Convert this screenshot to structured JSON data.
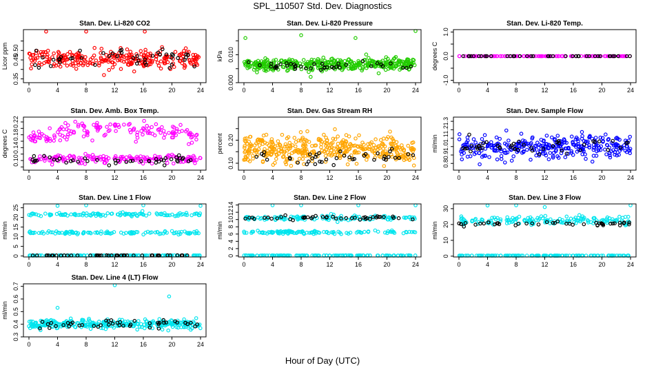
{
  "page": {
    "title": "SPL_110507  Std. Dev. Diagnostics",
    "xlabel": "Hour of Day (UTC)"
  },
  "colors": {
    "red": "#ff0000",
    "green": "#22cc00",
    "magenta": "#ff00ff",
    "orange": "#ffa500",
    "blue": "#0000ff",
    "cyan": "#00e5ee",
    "black": "#000000"
  },
  "chart_data": [
    {
      "type": "scatter",
      "title": "Stan. Dev. Li-820 CO2",
      "ylabel": "Licor ppm",
      "xlim": [
        0,
        24
      ],
      "xticks": [
        0,
        4,
        8,
        12,
        16,
        20,
        24
      ],
      "ylim": [
        0.33,
        0.61
      ],
      "yticks": [
        0.35,
        0.4,
        0.45,
        0.5,
        0.55
      ],
      "yticklabels": [
        "0.35",
        "",
        "0.45",
        "0.50",
        ""
      ],
      "series": [
        {
          "color": "red",
          "bands": [
            {
              "center": 0.455,
              "spread": 0.05
            }
          ],
          "count": 280,
          "outliers": [
            [
              2.4,
              0.6
            ],
            [
              8,
              0.6
            ],
            [
              16.2,
              0.6
            ]
          ]
        },
        {
          "color": "black",
          "bands": [
            {
              "center": 0.46,
              "spread": 0.04
            }
          ],
          "count": 45
        }
      ]
    },
    {
      "type": "scatter",
      "title": "Stan. Dev. Li-820 Pressure",
      "ylabel": "kPa",
      "xlim": [
        0,
        24
      ],
      "xticks": [
        0,
        4,
        8,
        12,
        16,
        20,
        24
      ],
      "ylim": [
        0.0,
        0.019
      ],
      "yticks": [
        0.0,
        0.005,
        0.01,
        0.015
      ],
      "yticklabels": [
        "0.000",
        "",
        "0.010",
        ""
      ],
      "series": [
        {
          "color": "green",
          "bands": [
            {
              "center": 0.0065,
              "spread": 0.0022
            }
          ],
          "count": 400,
          "outliers": [
            [
              8,
              0.017
            ],
            [
              15.6,
              0.016
            ],
            [
              24,
              0.019
            ],
            [
              0.2,
              0.016
            ]
          ]
        },
        {
          "color": "black",
          "bands": [
            {
              "center": 0.006,
              "spread": 0.0015
            }
          ],
          "count": 40
        }
      ]
    },
    {
      "type": "scatter",
      "title": "Stan. Dev. Li-820 Temp.",
      "ylabel": "degrees C",
      "xlim": [
        0,
        24
      ],
      "xticks": [
        0,
        4,
        8,
        12,
        16,
        20,
        24
      ],
      "ylim": [
        -1.1,
        1.1
      ],
      "yticks": [
        -1.0,
        -0.5,
        0.0,
        0.5,
        1.0
      ],
      "yticklabels": [
        "-1.0",
        "",
        "0.0",
        "",
        "1.0"
      ],
      "series": [
        {
          "color": "magenta",
          "bands": [
            {
              "center": 0.0,
              "spread": 0.0
            }
          ],
          "count": 120
        },
        {
          "color": "black",
          "bands": [
            {
              "center": 0.0,
              "spread": 0.0
            }
          ],
          "count": 40
        }
      ]
    },
    {
      "type": "scatter",
      "title": "Stan. Dev. Amb. Box Temp.",
      "ylabel": "degrees C",
      "xlim": [
        0,
        24
      ],
      "xticks": [
        0,
        4,
        8,
        12,
        16,
        20,
        24
      ],
      "ylim": [
        0.07,
        0.235
      ],
      "yticks": [
        0.08,
        0.1,
        0.12,
        0.14,
        0.16,
        0.18,
        0.2,
        0.22
      ],
      "yticklabels": [
        "",
        "0.10",
        "",
        "0.14",
        "",
        "0.18",
        "",
        "0.22"
      ],
      "series": [
        {
          "color": "magenta",
          "bands": [
            {
              "center": 0.17,
              "spread": 0.025,
              "arch": 0.03
            },
            {
              "center": 0.105,
              "spread": 0.012
            }
          ],
          "count": 320
        },
        {
          "color": "black",
          "bands": [
            {
              "center": 0.1,
              "spread": 0.012
            }
          ],
          "count": 45
        }
      ]
    },
    {
      "type": "scatter",
      "title": "Stan. Dev. Gas Stream RH",
      "ylabel": "percent",
      "xlim": [
        0,
        24
      ],
      "xticks": [
        0,
        4,
        8,
        12,
        16,
        20,
        24
      ],
      "ylim": [
        0.07,
        0.3
      ],
      "yticks": [
        0.1,
        0.15,
        0.2,
        0.25
      ],
      "yticklabels": [
        "0.10",
        "",
        "0.20",
        ""
      ],
      "series": [
        {
          "color": "orange",
          "bands": [
            {
              "center": 0.16,
              "spread": 0.06
            }
          ],
          "count": 420
        },
        {
          "color": "black",
          "bands": [
            {
              "center": 0.13,
              "spread": 0.04
            }
          ],
          "count": 40
        }
      ]
    },
    {
      "type": "scatter",
      "title": "Stan. Dev. Sample Flow",
      "ylabel": "ml/min",
      "xlim": [
        0,
        24
      ],
      "xticks": [
        0,
        4,
        8,
        12,
        16,
        20,
        24
      ],
      "ylim": [
        0.72,
        1.35
      ],
      "yticks": [
        0.8,
        0.9,
        1.0,
        1.1,
        1.2,
        1.3
      ],
      "yticklabels": [
        "0.8",
        "0.9",
        "1.0",
        "1.1",
        "1.2",
        "1.3"
      ],
      "series": [
        {
          "color": "blue",
          "bands": [
            {
              "center": 1.0,
              "spread": 0.14
            }
          ],
          "count": 320
        },
        {
          "color": "black",
          "bands": [
            {
              "center": 1.0,
              "spread": 0.08
            }
          ],
          "count": 45
        }
      ]
    },
    {
      "type": "scatter",
      "title": "Stan. Dev. Line 1 Flow",
      "ylabel": "ml/min",
      "xlim": [
        0,
        24
      ],
      "xticks": [
        0,
        4,
        8,
        12,
        16,
        20,
        24
      ],
      "ylim": [
        -0.5,
        27
      ],
      "yticks": [
        0,
        5,
        10,
        15,
        20,
        25
      ],
      "yticklabels": [
        "0",
        "5",
        "10",
        "15",
        "20",
        "25"
      ],
      "series": [
        {
          "color": "cyan",
          "bands": [
            {
              "center": 21.5,
              "spread": 1.0
            },
            {
              "center": 12.0,
              "spread": 0.8
            },
            {
              "center": 0.3,
              "spread": 0.05
            }
          ],
          "count": 360,
          "outliers": [
            [
              4,
              26
            ],
            [
              8,
              26.5
            ],
            [
              16,
              26.5
            ],
            [
              24,
              26
            ]
          ]
        },
        {
          "color": "black",
          "bands": [
            {
              "center": 0.3,
              "spread": 0.05
            }
          ],
          "count": 45
        }
      ]
    },
    {
      "type": "scatter",
      "title": "Stan. Dev. Line 2 Flow",
      "ylabel": "ml/min",
      "xlim": [
        0,
        24
      ],
      "xticks": [
        0,
        4,
        8,
        12,
        16,
        20,
        24
      ],
      "ylim": [
        -0.3,
        14.3
      ],
      "yticks": [
        0,
        2,
        4,
        6,
        8,
        10,
        12,
        14
      ],
      "yticklabels": [
        "0",
        "2",
        "4",
        "6",
        "8",
        "10",
        "12",
        "14"
      ],
      "series": [
        {
          "color": "cyan",
          "bands": [
            {
              "center": 10.4,
              "spread": 0.7
            },
            {
              "center": 6.5,
              "spread": 0.4
            },
            {
              "center": 0.1,
              "spread": 0.05
            }
          ],
          "count": 360,
          "outliers": [
            [
              4,
              14
            ],
            [
              8,
              14.2
            ],
            [
              16,
              14.1
            ],
            [
              24,
              14
            ]
          ]
        },
        {
          "color": "black",
          "bands": [
            {
              "center": 10.4,
              "spread": 0.6
            }
          ],
          "count": 45
        }
      ]
    },
    {
      "type": "scatter",
      "title": "Stan. Dev. Line 3 Flow",
      "ylabel": "ml/min",
      "xlim": [
        0,
        24
      ],
      "xticks": [
        0,
        4,
        8,
        12,
        16,
        20,
        24
      ],
      "ylim": [
        -0.5,
        33
      ],
      "yticks": [
        0,
        10,
        20,
        30
      ],
      "yticklabels": [
        "0",
        "10",
        "20",
        "30"
      ],
      "series": [
        {
          "color": "cyan",
          "bands": [
            {
              "center": 22.5,
              "spread": 2.5
            },
            {
              "center": 0.3,
              "spread": 0.05
            }
          ],
          "count": 300,
          "outliers": [
            [
              4,
              32
            ],
            [
              8,
              33
            ],
            [
              12,
              31
            ],
            [
              24,
              33
            ]
          ]
        },
        {
          "color": "black",
          "bands": [
            {
              "center": 20.5,
              "spread": 1.2
            }
          ],
          "count": 45
        }
      ]
    },
    {
      "type": "scatter",
      "title": "Stan. Dev. Line 4 (LT) Flow",
      "ylabel": "ml/min",
      "xlim": [
        0,
        24
      ],
      "xticks": [
        0,
        4,
        8,
        12,
        16,
        20,
        24
      ],
      "ylim": [
        0.3,
        0.72
      ],
      "yticks": [
        0.3,
        0.4,
        0.5,
        0.6,
        0.7
      ],
      "yticklabels": [
        "0.3",
        "0.4",
        "0.5",
        "0.6",
        "0.7"
      ],
      "series": [
        {
          "color": "cyan",
          "bands": [
            {
              "center": 0.4,
              "spread": 0.035
            }
          ],
          "count": 320,
          "outliers": [
            [
              4,
              0.53
            ],
            [
              12,
              0.71
            ],
            [
              19.6,
              0.62
            ]
          ]
        },
        {
          "color": "black",
          "bands": [
            {
              "center": 0.4,
              "spread": 0.03
            }
          ],
          "count": 45
        }
      ]
    }
  ]
}
